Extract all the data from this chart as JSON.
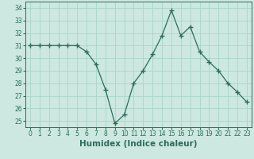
{
  "xlabel": "Humidex (Indice chaleur)",
  "ylabel": "",
  "x": [
    0,
    1,
    2,
    3,
    4,
    5,
    6,
    7,
    8,
    9,
    10,
    11,
    12,
    13,
    14,
    15,
    16,
    17,
    18,
    19,
    20,
    21,
    22,
    23
  ],
  "y": [
    31,
    31,
    31,
    31,
    31,
    31,
    30.5,
    29.5,
    27.5,
    24.8,
    25.5,
    28,
    29,
    30.3,
    31.8,
    33.8,
    31.8,
    32.5,
    30.5,
    29.7,
    29,
    28,
    27.3,
    26.5
  ],
  "ylim": [
    24.5,
    34.5
  ],
  "xlim": [
    -0.5,
    23.5
  ],
  "yticks": [
    25,
    26,
    27,
    28,
    29,
    30,
    31,
    32,
    33,
    34
  ],
  "xticks": [
    0,
    1,
    2,
    3,
    4,
    5,
    6,
    7,
    8,
    9,
    10,
    11,
    12,
    13,
    14,
    15,
    16,
    17,
    18,
    19,
    20,
    21,
    22,
    23
  ],
  "line_color": "#2e6b5e",
  "marker": "+",
  "marker_size": 4,
  "background_color": "#cce8e0",
  "grid_color": "#aad4c8",
  "tick_label_fontsize": 5.5,
  "xlabel_fontsize": 7.5,
  "spine_color": "#2e6b5e"
}
